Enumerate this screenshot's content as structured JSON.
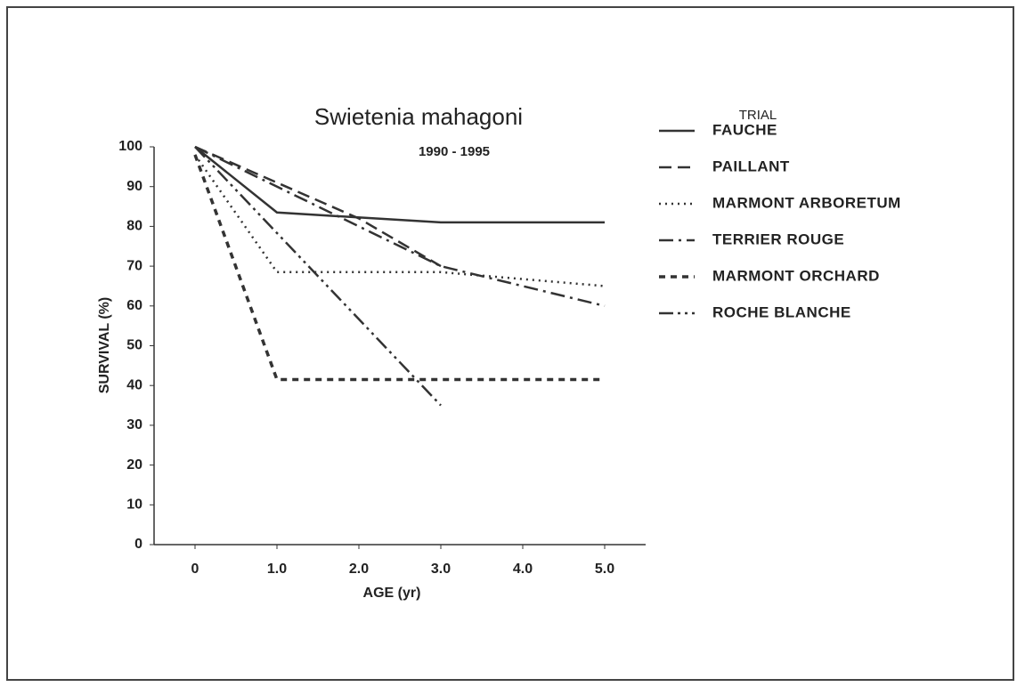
{
  "chart_data": {
    "type": "line",
    "title": "Swietenia mahagoni",
    "subtitle": "1990 - 1995",
    "xlabel": "AGE (yr)",
    "ylabel": "SURVIVAL (%)",
    "legend_title": "TRIAL",
    "legend": "right",
    "grid": false,
    "xlim": [
      -0.5,
      5.5
    ],
    "xticks": [
      0,
      {
        "value": 1,
        "label": "1.0"
      },
      {
        "value": 2,
        "label": "2.0"
      },
      {
        "value": 3,
        "label": "3.0"
      },
      {
        "value": 4,
        "label": "4.0"
      },
      {
        "value": 5,
        "label": "5.0"
      }
    ],
    "ylim": [
      0,
      100
    ],
    "yticks": [
      0,
      10,
      20,
      30,
      40,
      50,
      60,
      70,
      80,
      90,
      100
    ],
    "series": [
      {
        "name": "FAUCHE",
        "color": "#333333",
        "linestyle": "solid",
        "x": [
          0,
          1,
          3,
          5
        ],
        "values": [
          100,
          83.5,
          81,
          81
        ]
      },
      {
        "name": "PAILLANT",
        "color": "#333333",
        "linestyle": "dashed",
        "x": [
          0,
          1,
          2,
          3
        ],
        "values": [
          100,
          91,
          82,
          70
        ]
      },
      {
        "name": "MARMONT ARBORETUM",
        "color": "#333333",
        "linestyle": "dotted",
        "x": [
          0,
          1,
          3,
          5
        ],
        "values": [
          98,
          68.5,
          68.5,
          65
        ]
      },
      {
        "name": "TERRIER ROUGE",
        "color": "#333333",
        "linestyle": "dashdot",
        "x": [
          0,
          3,
          5
        ],
        "values": [
          100,
          70,
          60
        ]
      },
      {
        "name": "MARMONT ORCHARD",
        "color": "#333333",
        "linestyle": "shortdash",
        "x": [
          0,
          1,
          5
        ],
        "values": [
          98,
          41.5,
          41.5
        ]
      },
      {
        "name": "ROCHE BLANCHE",
        "color": "#333333",
        "linestyle": "dashdotdot",
        "x": [
          0,
          3
        ],
        "values": [
          100,
          35
        ]
      }
    ]
  }
}
